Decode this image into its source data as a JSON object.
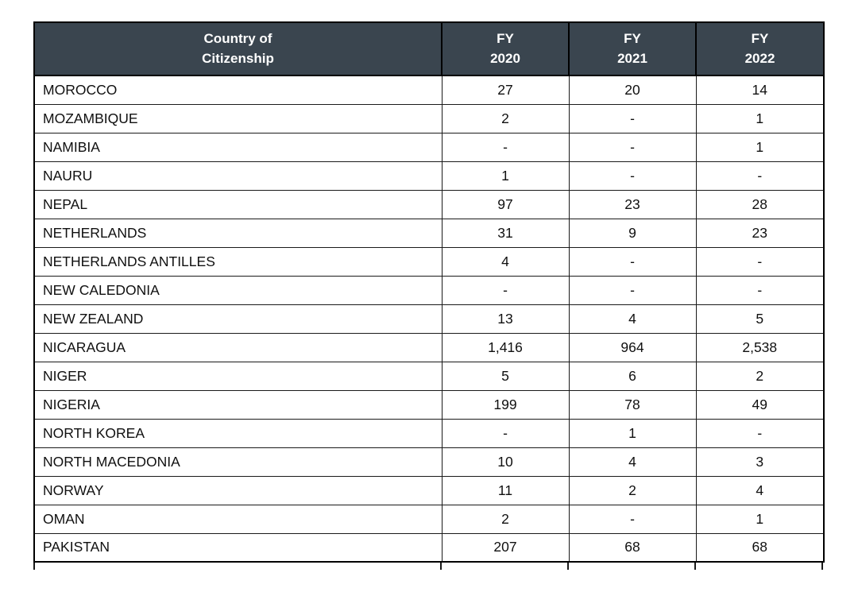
{
  "page": {
    "background": "#ffffff"
  },
  "table": {
    "style": {
      "header_bg": "#3a454f",
      "header_text": "#ffffff",
      "border_color": "#000000"
    },
    "header": {
      "country": "Country of\nCitizenship",
      "years": [
        "FY\n2020",
        "FY\n2021",
        "FY\n2022"
      ]
    },
    "rows": [
      {
        "country": "MOROCCO",
        "values": [
          "27",
          "20",
          "14"
        ]
      },
      {
        "country": "MOZAMBIQUE",
        "values": [
          "2",
          "-",
          "1"
        ]
      },
      {
        "country": "NAMIBIA",
        "values": [
          "-",
          "-",
          "1"
        ]
      },
      {
        "country": "NAURU",
        "values": [
          "1",
          "-",
          "-"
        ]
      },
      {
        "country": "NEPAL",
        "values": [
          "97",
          "23",
          "28"
        ]
      },
      {
        "country": "NETHERLANDS",
        "values": [
          "31",
          "9",
          "23"
        ]
      },
      {
        "country": "NETHERLANDS ANTILLES",
        "values": [
          "4",
          "-",
          "-"
        ]
      },
      {
        "country": "NEW CALEDONIA",
        "values": [
          "-",
          "-",
          "-"
        ]
      },
      {
        "country": "NEW ZEALAND",
        "values": [
          "13",
          "4",
          "5"
        ]
      },
      {
        "country": "NICARAGUA",
        "values": [
          "1,416",
          "964",
          "2,538"
        ]
      },
      {
        "country": "NIGER",
        "values": [
          "5",
          "6",
          "2"
        ]
      },
      {
        "country": "NIGERIA",
        "values": [
          "199",
          "78",
          "49"
        ]
      },
      {
        "country": "NORTH KOREA",
        "values": [
          "-",
          "1",
          "-"
        ]
      },
      {
        "country": "NORTH MACEDONIA",
        "values": [
          "10",
          "4",
          "3"
        ]
      },
      {
        "country": "NORWAY",
        "values": [
          "11",
          "2",
          "4"
        ]
      },
      {
        "country": "OMAN",
        "values": [
          "2",
          "-",
          "1"
        ]
      },
      {
        "country": "PAKISTAN",
        "values": [
          "207",
          "68",
          "68"
        ]
      }
    ]
  }
}
